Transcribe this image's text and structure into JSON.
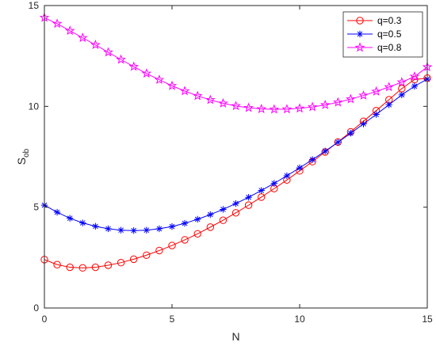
{
  "chart_data": {
    "type": "line",
    "xlabel": "N",
    "ylabel_main": "S",
    "ylabel_sub": "ob",
    "xlim": [
      0,
      15
    ],
    "ylim": [
      0,
      15
    ],
    "xticks": [
      "0",
      "5",
      "10",
      "15"
    ],
    "yticks": [
      "0",
      "5",
      "10",
      "15"
    ],
    "grid": false,
    "legend_position": "top-right",
    "x": [
      0,
      0.5,
      1,
      1.5,
      2,
      2.5,
      3,
      3.5,
      4,
      4.5,
      5,
      5.5,
      6,
      6.5,
      7,
      7.5,
      8,
      8.5,
      9,
      9.5,
      10,
      10.5,
      11,
      11.5,
      12,
      12.5,
      13,
      13.5,
      14,
      14.5,
      15
    ],
    "series": [
      {
        "name": "q=0.3",
        "color": "#ff0000",
        "marker": "circle",
        "values": [
          2.4,
          2.15,
          2.02,
          1.99,
          2.02,
          2.12,
          2.25,
          2.42,
          2.62,
          2.85,
          3.1,
          3.38,
          3.68,
          4.01,
          4.35,
          4.72,
          5.1,
          5.5,
          5.92,
          6.35,
          6.8,
          7.26,
          7.74,
          8.23,
          8.74,
          9.26,
          9.79,
          10.33,
          10.88,
          11.33,
          11.4
        ]
      },
      {
        "name": "q=0.5",
        "color": "#0000ff",
        "marker": "asterisk",
        "values": [
          5.1,
          4.75,
          4.45,
          4.22,
          4.05,
          3.93,
          3.86,
          3.84,
          3.86,
          3.93,
          4.04,
          4.2,
          4.4,
          4.63,
          4.89,
          5.18,
          5.49,
          5.83,
          6.18,
          6.56,
          6.95,
          7.36,
          7.78,
          8.22,
          8.67,
          9.13,
          9.6,
          10.08,
          10.57,
          11.0,
          11.35
        ]
      },
      {
        "name": "q=0.8",
        "color": "#ff00ff",
        "marker": "star",
        "values": [
          14.4,
          14.1,
          13.75,
          13.4,
          13.05,
          12.68,
          12.32,
          11.97,
          11.63,
          11.32,
          11.02,
          10.76,
          10.52,
          10.32,
          10.15,
          10.02,
          9.93,
          9.87,
          9.85,
          9.86,
          9.9,
          9.97,
          10.07,
          10.2,
          10.36,
          10.54,
          10.74,
          10.96,
          11.2,
          11.48,
          11.95
        ]
      }
    ]
  }
}
